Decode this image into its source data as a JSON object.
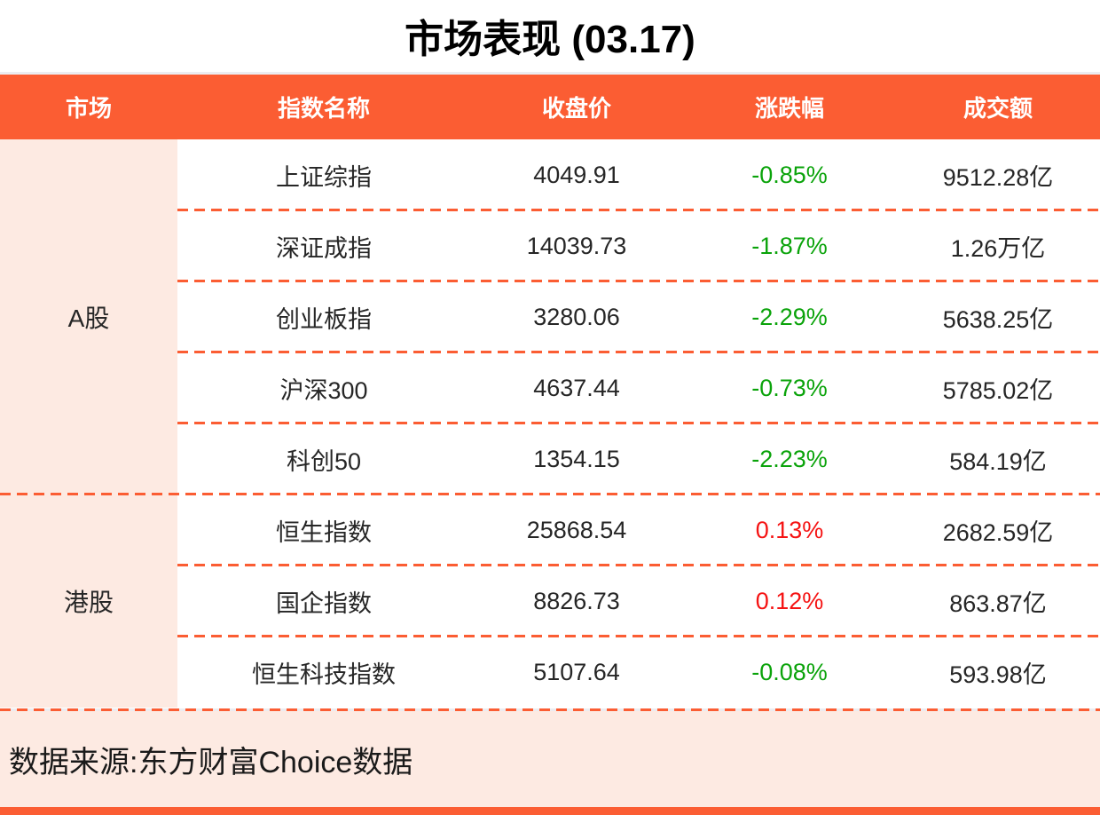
{
  "colors": {
    "accent": "#FB5D33",
    "panel-pink": "#FDEAE2",
    "up-red": "#F51313",
    "down-green": "#0AA30A",
    "gray-line": "#ECECF0",
    "text-dark": "#262626"
  },
  "chart_data": {
    "type": "table",
    "title": "市场表现 (03.17)",
    "columns": [
      "市场",
      "指数名称",
      "收盘价",
      "涨跌幅",
      "成交额"
    ],
    "groups": [
      {
        "market": "A股",
        "rows": [
          {
            "name": "上证综指",
            "close": "4049.91",
            "change": "-0.85%",
            "trend": "down",
            "turnover": "9512.28亿"
          },
          {
            "name": "深证成指",
            "close": "14039.73",
            "change": "-1.87%",
            "trend": "down",
            "turnover": "1.26万亿"
          },
          {
            "name": "创业板指",
            "close": "3280.06",
            "change": "-2.29%",
            "trend": "down",
            "turnover": "5638.25亿"
          },
          {
            "name": "沪深300",
            "close": "4637.44",
            "change": "-0.73%",
            "trend": "down",
            "turnover": "5785.02亿"
          },
          {
            "name": "科创50",
            "close": "1354.15",
            "change": "-2.23%",
            "trend": "down",
            "turnover": "584.19亿"
          }
        ]
      },
      {
        "market": "港股",
        "rows": [
          {
            "name": "恒生指数",
            "close": "25868.54",
            "change": "0.13%",
            "trend": "up",
            "turnover": "2682.59亿"
          },
          {
            "name": "国企指数",
            "close": "8826.73",
            "change": "0.12%",
            "trend": "up",
            "turnover": "863.87亿"
          },
          {
            "name": "恒生科技指数",
            "close": "5107.64",
            "change": "-0.08%",
            "trend": "down",
            "turnover": "593.98亿"
          }
        ]
      }
    ],
    "source": "数据来源:东方财富Choice数据"
  }
}
